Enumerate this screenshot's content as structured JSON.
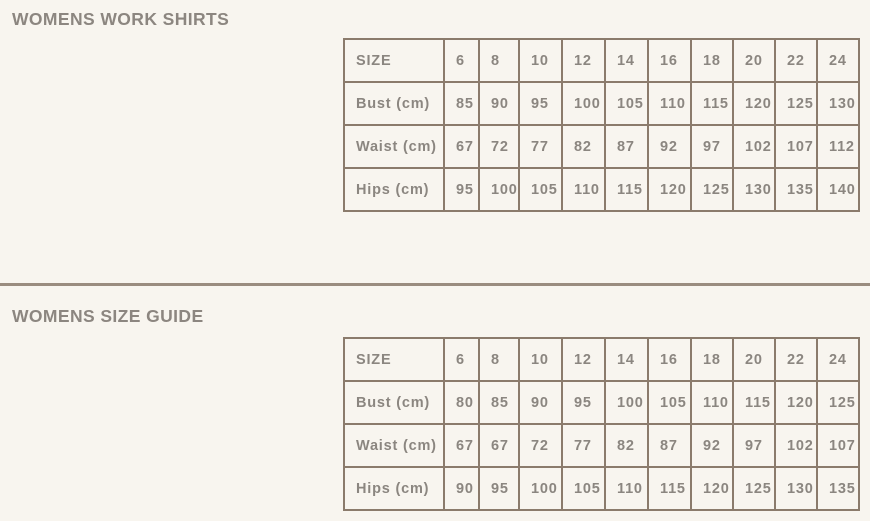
{
  "page": {
    "background_color": "#f8f5ef",
    "heading_color": "#8c8680",
    "table_border_color": "#8b7b6c",
    "table_text_color": "#8b8680",
    "divider_color": "#9a8c7f"
  },
  "sections": [
    {
      "heading": "WOMENS WORK SHIRTS",
      "table": {
        "rows": [
          [
            "SIZE",
            "6",
            "8",
            "10",
            "12",
            "14",
            "16",
            "18",
            "20",
            "22",
            "24"
          ],
          [
            "Bust (cm)",
            "85",
            "90",
            "95",
            "100",
            "105",
            "110",
            "115",
            "120",
            "125",
            "130"
          ],
          [
            "Waist (cm)",
            "67",
            "72",
            "77",
            "82",
            "87",
            "92",
            "97",
            "102",
            "107",
            "112"
          ],
          [
            "Hips (cm)",
            "95",
            "100",
            "105",
            "110",
            "115",
            "120",
            "125",
            "130",
            "135",
            "140"
          ]
        ]
      }
    },
    {
      "heading": "WOMENS SIZE GUIDE",
      "table": {
        "rows": [
          [
            "SIZE",
            "6",
            "8",
            "10",
            "12",
            "14",
            "16",
            "18",
            "20",
            "22",
            "24"
          ],
          [
            "Bust (cm)",
            "80",
            "85",
            "90",
            "95",
            "100",
            "105",
            "110",
            "115",
            "120",
            "125"
          ],
          [
            "Waist (cm)",
            "67",
            "67",
            "72",
            "77",
            "82",
            "87",
            "92",
            "97",
            "102",
            "107"
          ],
          [
            "Hips (cm)",
            "90",
            "95",
            "100",
            "105",
            "110",
            "115",
            "120",
            "125",
            "130",
            "135"
          ]
        ]
      }
    }
  ]
}
